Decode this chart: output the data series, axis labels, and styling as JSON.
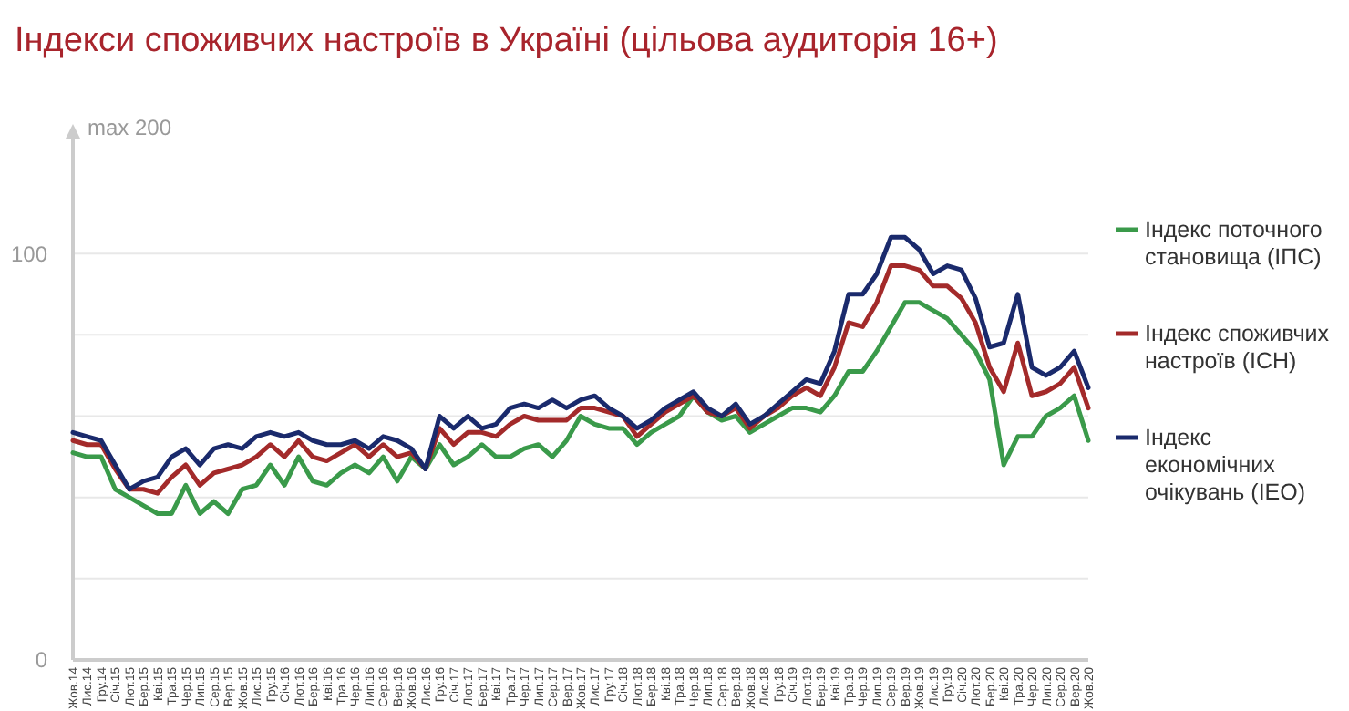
{
  "chart_data": {
    "type": "line",
    "title": "Індекси споживчих настроїв в Україні (цільова аудиторія 16+)",
    "categories": [
      "Жов.14",
      "Лис.14",
      "Гру.14",
      "Січ.15",
      "Лют.15",
      "Бер.15",
      "Кві.15",
      "Тра.15",
      "Чер.15",
      "Лип.15",
      "Сер.15",
      "Вер.15",
      "Жов.15",
      "Лис.15",
      "Гру.15",
      "Січ.16",
      "Лют.16",
      "Бер.16",
      "Кві.16",
      "Тра.16",
      "Чер.16",
      "Лип.16",
      "Сер.16",
      "Вер.16",
      "Жов.16",
      "Лис.16",
      "Гру.16",
      "Січ.17",
      "Лют.17",
      "Бер.17",
      "Кві.17",
      "Тра.17",
      "Чер.17",
      "Лип.17",
      "Сер.17",
      "Вер.17",
      "Жов.17",
      "Лис.17",
      "Гру.17",
      "Січ.18",
      "Лют.18",
      "Бер.18",
      "Кві.18",
      "Тра.18",
      "Чер.18",
      "Лип.18",
      "Сер.18",
      "Вер.18",
      "Жов.18",
      "Лис.18",
      "Гру.18",
      "Січ.19",
      "Лют.19",
      "Бер.19",
      "Кві.19",
      "Тра.19",
      "Чер.19",
      "Лип.19",
      "Сер.19",
      "Вер.19",
      "Жов.19",
      "Лис.19",
      "Гру.19",
      "Січ.20",
      "Лют.20",
      "Бер.20",
      "Кві.20",
      "Тра.20",
      "Чер.20",
      "Лип.20",
      "Сер.20",
      "Вер.20",
      "Жов.20"
    ],
    "series": [
      {
        "name": "Індекс поточного становища (ІПС)",
        "color": "#3a9a4a",
        "values": [
          51,
          50,
          50,
          42,
          40,
          38,
          36,
          36,
          43,
          36,
          39,
          36,
          42,
          43,
          48,
          43,
          50,
          44,
          43,
          46,
          48,
          46,
          50,
          44,
          50,
          47,
          53,
          48,
          50,
          53,
          50,
          50,
          52,
          53,
          50,
          54,
          60,
          58,
          57,
          57,
          53,
          56,
          58,
          60,
          65,
          61,
          59,
          60,
          56,
          58,
          60,
          62,
          62,
          61,
          65,
          71,
          71,
          76,
          82,
          88,
          88,
          86,
          84,
          80,
          76,
          69,
          48,
          55,
          55,
          60,
          62,
          65,
          54
        ]
      },
      {
        "name": "Індекс споживчих настроїв (ІСН)",
        "color": "#a32a2a",
        "values": [
          54,
          53,
          53,
          47,
          42,
          42,
          41,
          45,
          48,
          43,
          46,
          47,
          48,
          50,
          53,
          50,
          54,
          50,
          49,
          51,
          53,
          50,
          53,
          50,
          51,
          47,
          57,
          53,
          56,
          56,
          55,
          58,
          60,
          59,
          59,
          59,
          62,
          62,
          61,
          60,
          55,
          58,
          61,
          63,
          65,
          61,
          60,
          62,
          57,
          60,
          62,
          65,
          67,
          65,
          72,
          83,
          82,
          88,
          97,
          97,
          96,
          92,
          92,
          89,
          83,
          72,
          66,
          78,
          65,
          66,
          68,
          72,
          62
        ]
      },
      {
        "name": "Індекс економічних очікувань (ІЕО)",
        "color": "#1a2a6c",
        "values": [
          56,
          55,
          54,
          48,
          42,
          44,
          45,
          50,
          52,
          48,
          52,
          53,
          52,
          55,
          56,
          55,
          56,
          54,
          53,
          53,
          54,
          52,
          55,
          54,
          52,
          47,
          60,
          57,
          60,
          57,
          58,
          62,
          63,
          62,
          64,
          62,
          64,
          65,
          62,
          60,
          57,
          59,
          62,
          64,
          66,
          62,
          60,
          63,
          58,
          60,
          63,
          66,
          69,
          68,
          76,
          90,
          90,
          95,
          104,
          104,
          101,
          95,
          97,
          96,
          89,
          77,
          78,
          90,
          72,
          70,
          72,
          76,
          67
        ]
      }
    ],
    "ylim": [
      0,
      131
    ],
    "yticks": [
      0,
      {
        "value": 20,
        "label": null
      },
      {
        "value": 40,
        "label": null
      },
      {
        "value": 60,
        "label": null
      },
      {
        "value": 80,
        "label": null
      },
      100
    ],
    "annotations": [
      "max 200"
    ],
    "grid": "y",
    "legend": "right",
    "line_style": "solid",
    "marker": "none"
  }
}
